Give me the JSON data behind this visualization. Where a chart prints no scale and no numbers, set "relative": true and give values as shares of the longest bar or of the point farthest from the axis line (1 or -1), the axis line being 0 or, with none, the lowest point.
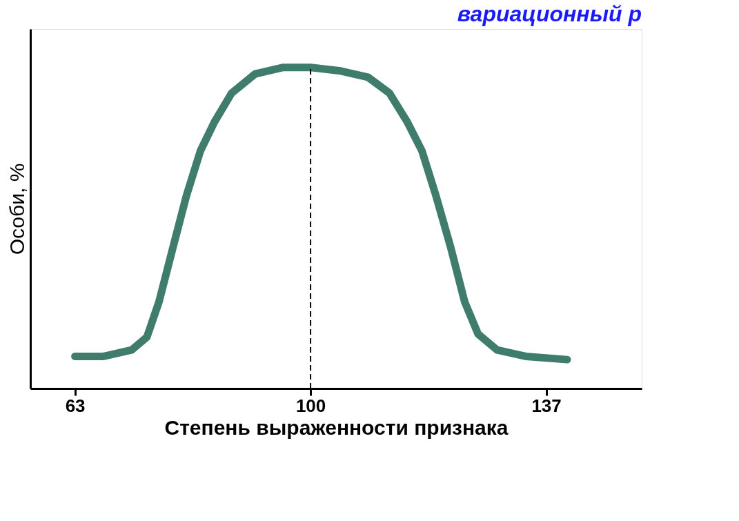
{
  "chart_data": {
    "type": "line",
    "title": "вариационный р",
    "xlabel": "Степень выраженности признака",
    "ylabel": "Особи, %",
    "relative": true,
    "x": [
      63,
      67.5,
      71.9,
      74.3,
      76.2,
      78.4,
      80.5,
      82.7,
      84.9,
      87.6,
      91.3,
      95.6,
      100,
      104.5,
      109,
      112.4,
      115.2,
      117.5,
      119.7,
      122,
      124.2,
      126.3,
      129.3,
      133.8,
      140.3
    ],
    "series": [
      {
        "color": "#3f7c6c",
        "values": [
          0.1,
          0.1,
          0.12,
          0.16,
          0.27,
          0.44,
          0.6,
          0.74,
          0.83,
          0.92,
          0.98,
          1.0,
          1.0,
          0.99,
          0.97,
          0.92,
          0.83,
          0.74,
          0.6,
          0.44,
          0.27,
          0.17,
          0.12,
          0.1,
          0.09
        ]
      }
    ],
    "xlim": [
      56,
      152
    ],
    "xticks": [
      63,
      100,
      137
    ],
    "ref_lines": [
      {
        "axis": "x",
        "value": 100,
        "color": "#000000",
        "line_style": "dashed"
      }
    ],
    "grid": false,
    "line_style": "solid"
  }
}
